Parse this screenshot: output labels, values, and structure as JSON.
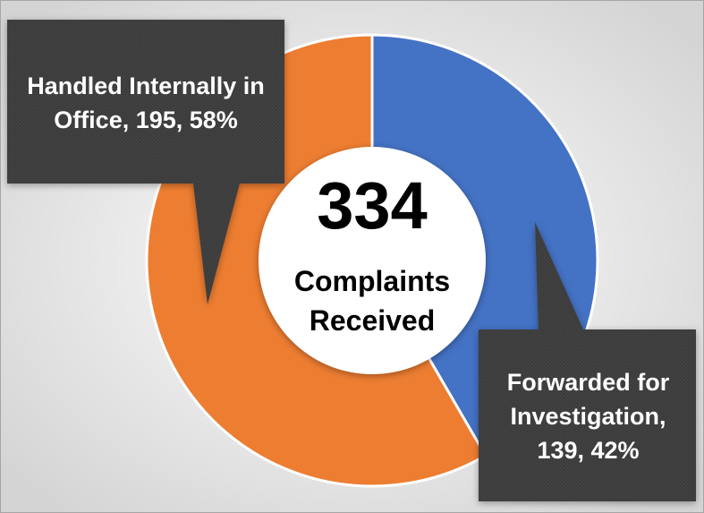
{
  "chart_data": {
    "type": "donut",
    "values": [
      139,
      195
    ],
    "value_labels": [
      "Forwarded for Investigation, 139, 42%",
      "Handled Internally in Office, 195, 58%"
    ],
    "colors": [
      "#4472c4",
      "#ed7d31"
    ],
    "center_value": 334,
    "center_label": "Complaints Received"
  }
}
